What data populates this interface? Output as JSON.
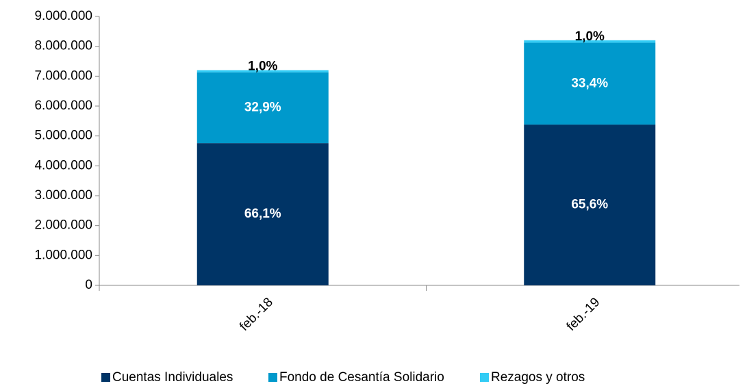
{
  "chart_data": {
    "type": "stacked_bar",
    "categories": [
      "feb.-18",
      "feb.-19"
    ],
    "series": [
      {
        "name": "Cuentas Individuales",
        "color": "#003466",
        "values": [
          4760000,
          5380000
        ],
        "share_labels": [
          "66,1%",
          "65,6%"
        ]
      },
      {
        "name": "Fondo de Cesantía Solidario",
        "color": "#0099cc",
        "values": [
          2370000,
          2740000
        ],
        "share_labels": [
          "32,9%",
          "33,4%"
        ]
      },
      {
        "name": "Rezagos y otros",
        "color": "#33ccf5",
        "values": [
          72000,
          82000
        ],
        "share_labels": [
          "1,0%",
          "1,0%"
        ]
      }
    ],
    "ylim": [
      0,
      9000000
    ],
    "yticks": [
      0,
      {
        "value": 1000000,
        "label": "1.000.000"
      },
      {
        "value": 2000000,
        "label": "2.000.000"
      },
      {
        "value": 3000000,
        "label": "3.000.000"
      },
      {
        "value": 4000000,
        "label": "4.000.000"
      },
      {
        "value": 5000000,
        "label": "5.000.000"
      },
      {
        "value": 6000000,
        "label": "6.000.000"
      },
      {
        "value": 7000000,
        "label": "7.000.000"
      },
      {
        "value": 8000000,
        "label": "8.000.000"
      },
      {
        "value": 9000000,
        "label": "9.000.000"
      }
    ],
    "grid": false,
    "legend": "bottom"
  }
}
